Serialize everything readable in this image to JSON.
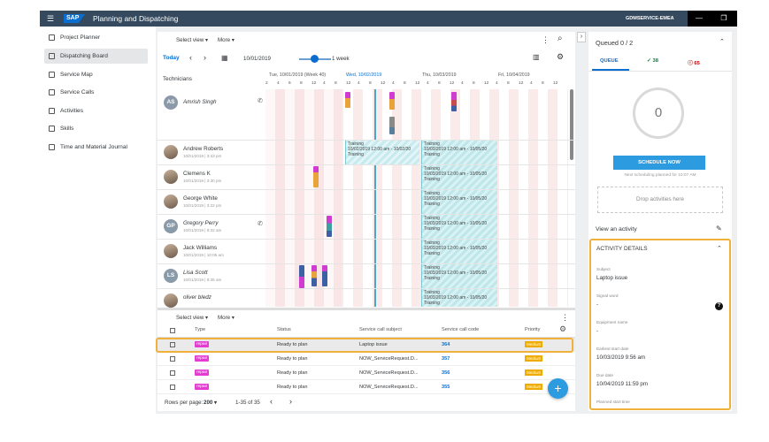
{
  "shell": {
    "app_title": "Planning and Dispatching",
    "logo": "SAP",
    "tenant": "GDMSERVICE-EMEA",
    "menu_icon": "☰",
    "min": "—",
    "max": "❐"
  },
  "nav": {
    "items": [
      {
        "label": "Project Planner"
      },
      {
        "label": "Dispatching Board"
      },
      {
        "label": "Service Map"
      },
      {
        "label": "Service Calls"
      },
      {
        "label": "Activities"
      },
      {
        "label": "Skills"
      },
      {
        "label": "Time and Material Journal"
      }
    ]
  },
  "toolbar": {
    "select_view": "Select view",
    "more": "More",
    "today": "Today",
    "prev": "‹",
    "next": "›",
    "date": "10/01/2019",
    "range": "1 week",
    "more_icon": "⋮",
    "search_icon": "⌕",
    "map_icon": "▥",
    "settings_icon": "⚙",
    "calendar_icon": "▦"
  },
  "timeline": {
    "technicians_label": "Technicians",
    "days": [
      "Tue, 10/01/2019 (Week 40)",
      "Wed, 10/02/2019",
      "Thu, 10/03/2019",
      "Fri, 10/04/2019"
    ],
    "hours": [
      "2",
      "4",
      "6",
      "8",
      "12",
      "4",
      "8",
      "12",
      "4",
      "8",
      "12",
      "4",
      "8",
      "12",
      "4",
      "8",
      "12",
      "4",
      "8",
      "12",
      "4",
      "8",
      "12",
      "4",
      "8",
      "12"
    ]
  },
  "technicians": [
    {
      "initials": "AS",
      "name": "Amrish Singh",
      "sub": ""
    },
    {
      "initials": "",
      "name": "Andrew Roberts",
      "sub": "10/01/2019 | 3:33 pm"
    },
    {
      "initials": "",
      "name": "Clemens K",
      "sub": "10/01/2019 | 3:30 pm"
    },
    {
      "initials": "",
      "name": "George White",
      "sub": "10/01/2019 | 3:22 pm"
    },
    {
      "initials": "GP",
      "name": "Gregory Perry",
      "sub": "10/01/2019 | 9:32 am"
    },
    {
      "initials": "",
      "name": "Jack Williams",
      "sub": "10/01/2019 | 10:05 am"
    },
    {
      "initials": "LS",
      "name": "Lisa Scott",
      "sub": "10/01/2019 | 9:35 am"
    },
    {
      "initials": "",
      "name": "oliver bledz",
      "sub": ""
    }
  ],
  "trainings": [
    {
      "text": "Training\n10/02/2019 12:00 am - 10/02/20\nTraining"
    },
    {
      "text": "Training\n10/03/2019 12:00 am - 10/05/20\nTraining"
    },
    {
      "text": "Training\n10/03/2019 12:00 am - 10/05/20\nTraining"
    },
    {
      "text": "Training\n10/03/2019 12:00 am - 10/05/20\nTraining"
    },
    {
      "text": "Training\n10/03/2019 12:00 am - 10/05/20\nTraining"
    },
    {
      "text": "Training\n10/03/2019 12:00 am - 10/05/20\nTraining"
    },
    {
      "text": "Training\n10/03/2019 12:00 am - 10/05/20\nTraining"
    },
    {
      "text": "Training\n10/03/2019 12:00 am - 10/05/20\nTraining"
    }
  ],
  "table": {
    "headers": [
      "Type",
      "Status",
      "Service call subject",
      "Service call code",
      "Priority"
    ],
    "rows": [
      {
        "type": "repair",
        "status": "Ready to plan",
        "subject": "Laptop issue",
        "code": "364",
        "priority": "Medium"
      },
      {
        "type": "repair",
        "status": "Ready to plan",
        "subject": "NOW_ServiceRequest.D...",
        "code": "357",
        "priority": "Medium"
      },
      {
        "type": "repair",
        "status": "Ready to plan",
        "subject": "NOW_ServiceRequest.D...",
        "code": "356",
        "priority": "Medium"
      },
      {
        "type": "repair",
        "status": "Ready to plan",
        "subject": "NOW_ServiceRequest.D...",
        "code": "355",
        "priority": "Medium"
      }
    ],
    "rows_per_page_label": "Rows per page:",
    "rows_per_page": "200",
    "range": "1-35 of 35",
    "prev": "‹",
    "next": "›",
    "fab": "+"
  },
  "right": {
    "collapse_icon": "›",
    "queued": "Queued 0 / 2",
    "chevron": "⌃",
    "tab_queue": "QUEUE",
    "tab_ok": "✓ 38",
    "tab_warn": "ⓘ 65",
    "count": "0",
    "schedule_btn": "SCHEDULE NOW",
    "schedule_note": "Next scheduling planned for 10:07 AM",
    "drop": "Drop activities here",
    "view_activity": "View an activity",
    "pencil": "✎"
  },
  "details": {
    "title": "ACTIVITY DETAILS",
    "chevron": "⌃",
    "help": "?",
    "fields": [
      {
        "label": "Subject",
        "value": "Laptop issue"
      },
      {
        "label": "Signal word",
        "value": "-"
      },
      {
        "label": "Equipment name",
        "value": "-"
      },
      {
        "label": "Earliest start date",
        "value": "10/03/2019   9:56 am"
      },
      {
        "label": "Due date",
        "value": "10/04/2019   11:59 pm"
      },
      {
        "label": "Planned start time",
        "value": ""
      }
    ]
  },
  "colors": {
    "shell": "#354a5f",
    "accent": "#0a6ed1",
    "highlight": "#f0b03a",
    "fab": "#2d9be0",
    "tag": "#e53ad4",
    "priority": "#f0ab00"
  }
}
